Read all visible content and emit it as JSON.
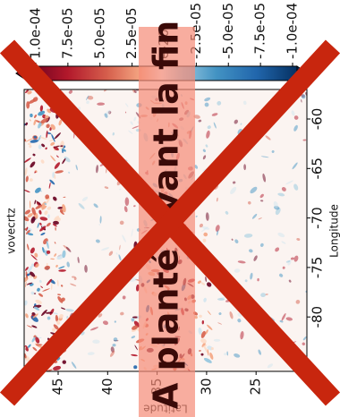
{
  "colorbar": {
    "ticks": [
      "1.0e-04",
      "7.5e-05",
      "5.0e-05",
      "2.5e-05",
      "e-20",
      "-2.5e-05",
      "-5.0e-05",
      "-7.5e-05",
      "-1.0e-04"
    ]
  },
  "plot": {
    "variable": "vovecrtz",
    "x_label": "Longitude",
    "x_ticks": [
      "-60",
      "-65",
      "-70",
      "-75",
      "-80"
    ],
    "y_label": "Latitude",
    "y_ticks": [
      "45",
      "40",
      "35",
      "30",
      "25"
    ]
  },
  "overlay": {
    "message": "A planté avant la fin"
  }
}
